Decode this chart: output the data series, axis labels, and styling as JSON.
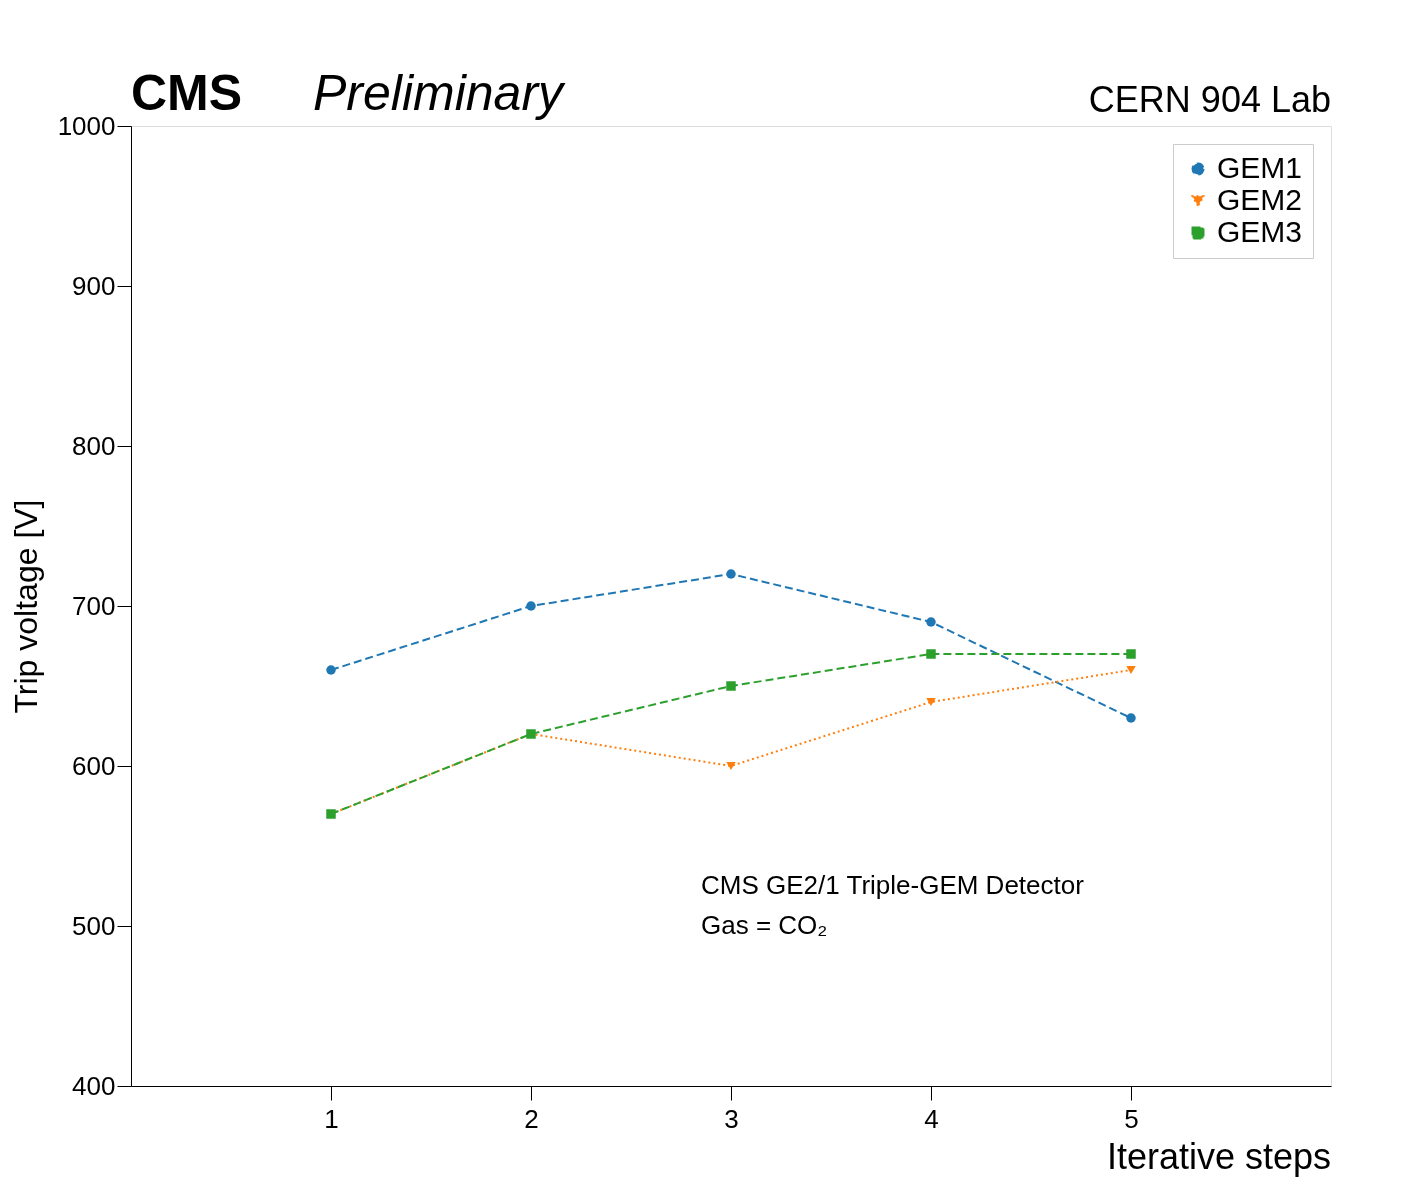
{
  "chart_data": {
    "type": "line",
    "title": "CMS",
    "subtitle": "Preliminary",
    "xlabel": "Iterative steps",
    "ylabel": "Trip voltage [V]",
    "x": [
      1,
      2,
      3,
      4,
      5
    ],
    "series": [
      {
        "name": "GEM1",
        "color": "#1f77b4",
        "values": [
          660,
          700,
          720,
          690,
          630
        ],
        "marker": "circle",
        "line_style": "dashed"
      },
      {
        "name": "GEM2",
        "color": "#ff7f0e",
        "values": [
          570,
          620,
          600,
          640,
          660
        ],
        "marker": "triangle",
        "line_style": "dotted"
      },
      {
        "name": "GEM3",
        "color": "#2ca02c",
        "values": [
          570,
          620,
          650,
          670,
          670
        ],
        "marker": "square",
        "line_style": "dashed"
      }
    ],
    "xlim": [
      0,
      6
    ],
    "xticks": [
      1,
      2,
      3,
      4,
      5
    ],
    "ylim": [
      400,
      1000
    ],
    "yticks": [
      400,
      500,
      600,
      700,
      800,
      900,
      1000
    ],
    "grid": false,
    "legend": "top right",
    "annotations": [
      "CERN 904 Lab",
      "CMS GE2/1 Triple-GEM Detector",
      "Gas = CO₂"
    ]
  }
}
